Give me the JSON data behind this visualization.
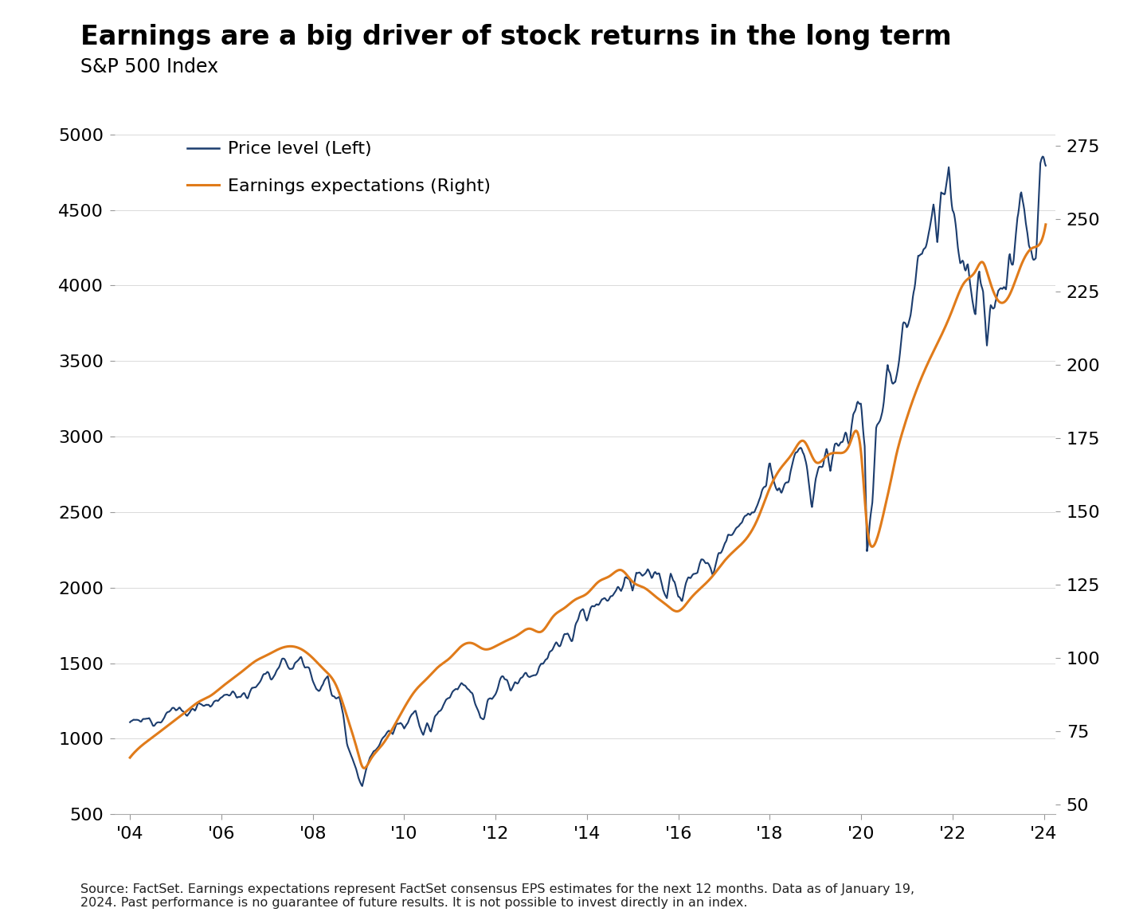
{
  "title": "Earnings are a big driver of stock returns in the long term",
  "subtitle": "S&P 500 Index",
  "footnote": "Source: FactSet. Earnings expectations represent FactSet consensus EPS estimates for the next 12 months. Data as of January 19,\n2024. Past performance is no guarantee of future results. It is not possible to invest directly in an index.",
  "legend": [
    {
      "label": "Price level (Left)",
      "color": "#1c3d6e",
      "lw": 1.8
    },
    {
      "label": "Earnings expectations (Right)",
      "color": "#e07b1a",
      "lw": 2.2
    }
  ],
  "left_ylim": [
    500,
    5250
  ],
  "right_ylim": [
    46.67,
    291.67
  ],
  "left_yticks": [
    500,
    1000,
    1500,
    2000,
    2500,
    3000,
    3500,
    4000,
    4500,
    5000
  ],
  "right_yticks": [
    50,
    75,
    100,
    125,
    150,
    175,
    200,
    225,
    250,
    275
  ],
  "xtick_years": [
    2004,
    2006,
    2008,
    2010,
    2012,
    2014,
    2016,
    2018,
    2020,
    2022,
    2024
  ],
  "xtick_labels": [
    "'04",
    "'06",
    "'08",
    "'10",
    "'12",
    "'14",
    "'16",
    "'18",
    "'20",
    "'22",
    "'24"
  ],
  "background_color": "#ffffff",
  "price_color": "#1c3d6e",
  "earnings_color": "#e07b1a",
  "title_fontsize": 24,
  "subtitle_fontsize": 17,
  "tick_fontsize": 16,
  "legend_fontsize": 16,
  "footnote_fontsize": 11.5
}
